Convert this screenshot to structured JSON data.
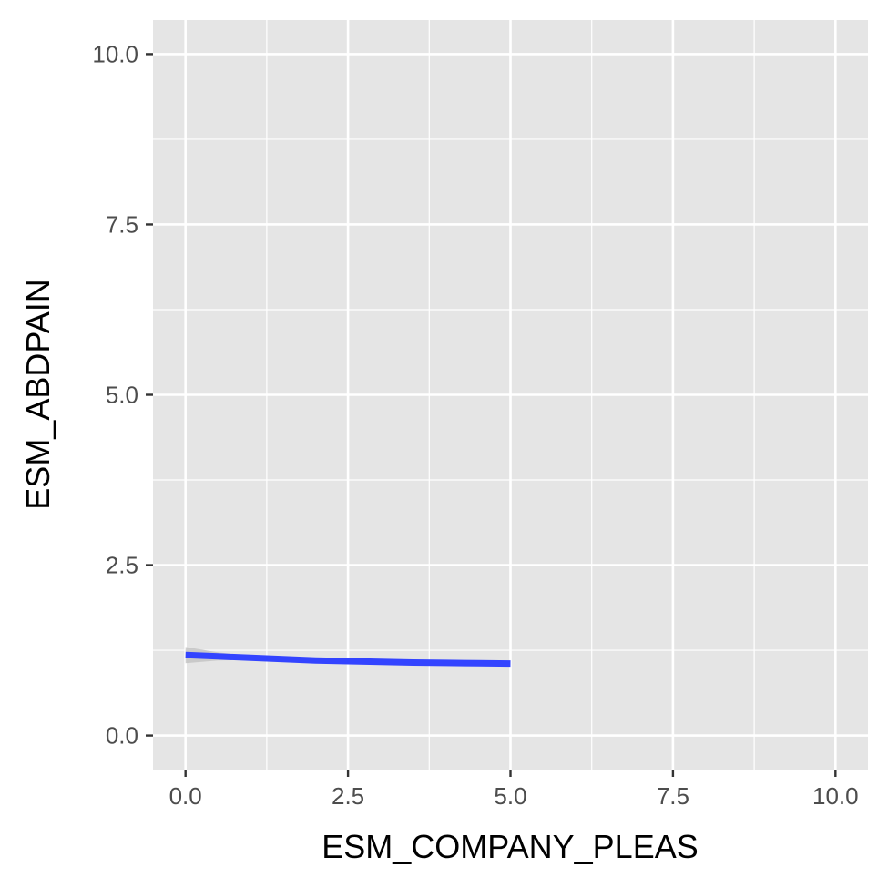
{
  "chart_data": {
    "type": "line",
    "title": "",
    "xlabel": "ESM_COMPANY_PLEAS",
    "ylabel": "ESM_ABDPAIN",
    "xlim": [
      -0.5,
      10.5
    ],
    "ylim": [
      -0.5,
      10.5
    ],
    "x_ticks": [
      0.0,
      2.5,
      5.0,
      7.5,
      10.0
    ],
    "y_ticks": [
      0.0,
      2.5,
      5.0,
      7.5,
      10.0
    ],
    "x_tick_labels": [
      "0.0",
      "2.5",
      "5.0",
      "7.5",
      "10.0"
    ],
    "y_tick_labels": [
      "0.0",
      "2.5",
      "5.0",
      "7.5",
      "10.0"
    ],
    "grid": true,
    "background_color": "#e5e5e5",
    "grid_color": "#ffffff",
    "series": [
      {
        "x": [
          0,
          0.5,
          1,
          1.5,
          2,
          2.5,
          3,
          3.5,
          4,
          4.5,
          5
        ],
        "y": [
          1.18,
          1.16,
          1.14,
          1.12,
          1.1,
          1.09,
          1.08,
          1.07,
          1.065,
          1.06,
          1.055
        ],
        "ci_upper": [
          1.3,
          1.22,
          1.17,
          1.14,
          1.12,
          1.11,
          1.1,
          1.09,
          1.09,
          1.09,
          1.09
        ],
        "ci_lower": [
          1.06,
          1.1,
          1.11,
          1.1,
          1.08,
          1.07,
          1.06,
          1.05,
          1.04,
          1.03,
          1.02
        ],
        "color": "#3344ff",
        "ci_color": "#bfbfbf"
      }
    ]
  }
}
